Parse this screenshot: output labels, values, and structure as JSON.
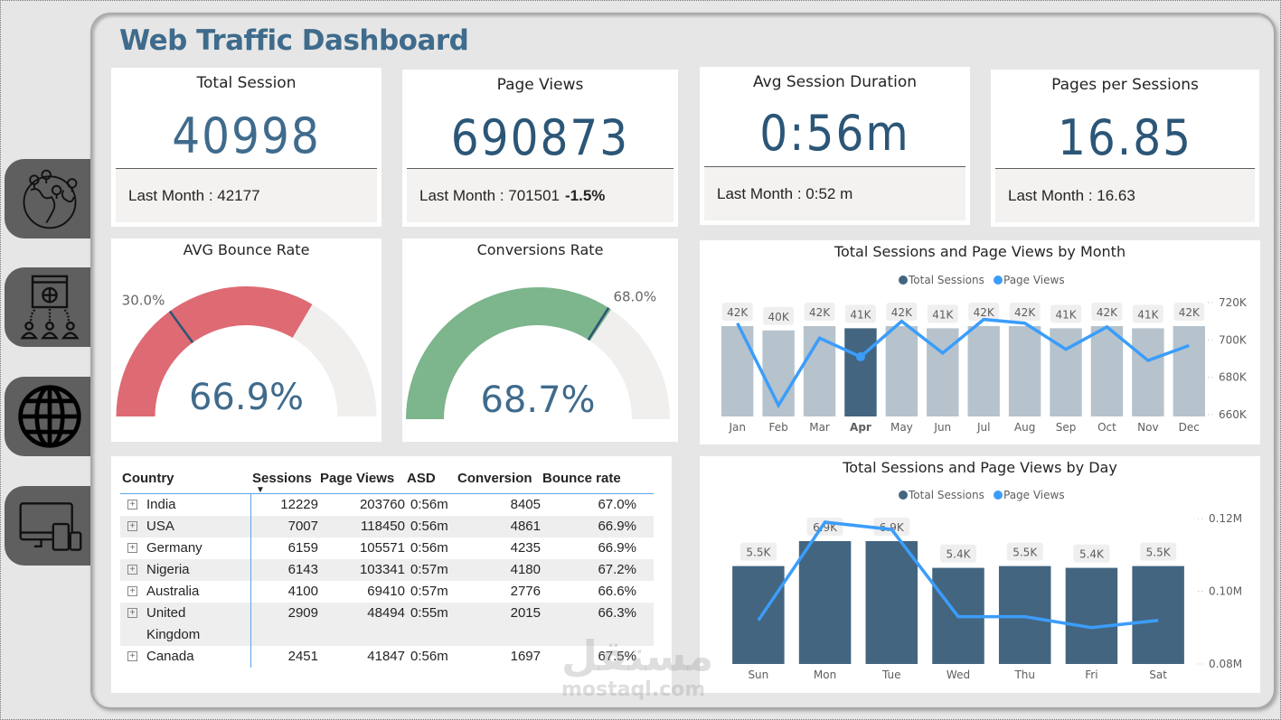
{
  "header": {
    "title": "Web Traffic Dashboard"
  },
  "nav": [
    {
      "name": "geo-map",
      "icon": "globe-pins-icon"
    },
    {
      "name": "web-users",
      "icon": "website-users-icon"
    },
    {
      "name": "global",
      "icon": "globe-icon"
    },
    {
      "name": "devices",
      "icon": "devices-icon"
    }
  ],
  "kpis": {
    "total_session": {
      "title": "Total Session",
      "value": "40998",
      "footer": "Last Month : 42177",
      "delta": ""
    },
    "page_views": {
      "title": "Page Views",
      "value": "690873",
      "footer": "Last Month : 701501",
      "delta": "-1.5%"
    },
    "avg_session_duration": {
      "title": "Avg Session Duration",
      "value": "0:56m",
      "footer": "Last Month : 0:52 m",
      "delta": ""
    },
    "pages_per_session": {
      "title": "Pages per Sessions",
      "value": "16.85",
      "footer": "Last Month : 16.63",
      "delta": ""
    }
  },
  "gauges": {
    "bounce": {
      "title": "AVG Bounce Rate",
      "value_label": "66.9%",
      "value": 66.9,
      "target": 30.0,
      "target_label": "30.0%",
      "max": 100,
      "fill_color": "#de6a73"
    },
    "conversion": {
      "title": "Conversions Rate",
      "value_label": "68.7%",
      "value": 68.7,
      "target": 68.0,
      "target_label": "68.0%",
      "max": 100,
      "fill_color": "#7db58c"
    }
  },
  "table": {
    "columns": [
      "Country",
      "Sessions",
      "Page Views",
      "ASD",
      "Conversion",
      "Bounce rate"
    ],
    "sorted_by": "Sessions",
    "rows": [
      {
        "country": "India",
        "sessions": "12229",
        "page_views": "203760",
        "asd": "0:56m",
        "conversion": "8405",
        "bounce": "67.0%"
      },
      {
        "country": "USA",
        "sessions": "7007",
        "page_views": "118450",
        "asd": "0:56m",
        "conversion": "4861",
        "bounce": "66.9%"
      },
      {
        "country": "Germany",
        "sessions": "6159",
        "page_views": "105571",
        "asd": "0:56m",
        "conversion": "4235",
        "bounce": "66.9%"
      },
      {
        "country": "Nigeria",
        "sessions": "6143",
        "page_views": "103341",
        "asd": "0:57m",
        "conversion": "4180",
        "bounce": "67.2%"
      },
      {
        "country": "Australia",
        "sessions": "4100",
        "page_views": "69410",
        "asd": "0:57m",
        "conversion": "2776",
        "bounce": "66.6%"
      },
      {
        "country": "United Kingdom",
        "sessions": "2909",
        "page_views": "48494",
        "asd": "0:55m",
        "conversion": "2015",
        "bounce": "66.3%"
      },
      {
        "country": "Canada",
        "sessions": "2451",
        "page_views": "41847",
        "asd": "0:56m",
        "conversion": "1697",
        "bounce": "67.5%"
      }
    ]
  },
  "chart_data": [
    {
      "type": "bar",
      "title": "Total Sessions and Page Views by Month",
      "legend": [
        "Total Sessions",
        "Page Views"
      ],
      "legend_position": "top-center",
      "categories": [
        "Jan",
        "Feb",
        "Mar",
        "Apr",
        "May",
        "Jun",
        "Jul",
        "Aug",
        "Sep",
        "Oct",
        "Nov",
        "Dec"
      ],
      "highlighted": "Apr",
      "series": [
        {
          "name": "Total Sessions",
          "kind": "bar",
          "values": [
            42000,
            40000,
            42000,
            41000,
            42000,
            41000,
            42000,
            42000,
            41000,
            42000,
            41000,
            42000
          ],
          "labels": [
            "42K",
            "40K",
            "42K",
            "41K",
            "42K",
            "41K",
            "42K",
            "42K",
            "41K",
            "42K",
            "41K",
            "42K"
          ],
          "color": "#b6c3cc",
          "highlight_color": "#436580"
        },
        {
          "name": "Page Views",
          "kind": "line",
          "values": [
            709000,
            665000,
            701000,
            691000,
            710000,
            693000,
            711000,
            709000,
            695000,
            707000,
            689000,
            697000
          ],
          "color": "#3b9dfa"
        }
      ],
      "y2_ticks": [
        "720K",
        "700K",
        "680K",
        "660K"
      ],
      "y2lim": [
        660000,
        720000
      ],
      "grid": false
    },
    {
      "type": "bar",
      "title": "Total Sessions and Page Views by Day",
      "legend": [
        "Total Sessions",
        "Page Views"
      ],
      "legend_position": "top-center",
      "categories": [
        "Sun",
        "Mon",
        "Tue",
        "Wed",
        "Thu",
        "Fri",
        "Sat"
      ],
      "series": [
        {
          "name": "Total Sessions",
          "kind": "bar",
          "values": [
            5500,
            6900,
            6900,
            5400,
            5500,
            5400,
            5500
          ],
          "labels": [
            "5.5K",
            "6.9K",
            "6.9K",
            "5.4K",
            "5.5K",
            "5.4K",
            "5.5K"
          ],
          "color": "#436580"
        },
        {
          "name": "Page Views",
          "kind": "line",
          "values": [
            92000,
            119000,
            117000,
            93000,
            93000,
            90000,
            92000
          ],
          "color": "#3b9dfa"
        }
      ],
      "y2_ticks": [
        "0.12M",
        "0.10M",
        "0.08M"
      ],
      "y2lim": [
        80000,
        120000
      ],
      "grid": false
    }
  ],
  "watermark": {
    "arabic": "مستقل",
    "latin": "mostaql.com"
  }
}
